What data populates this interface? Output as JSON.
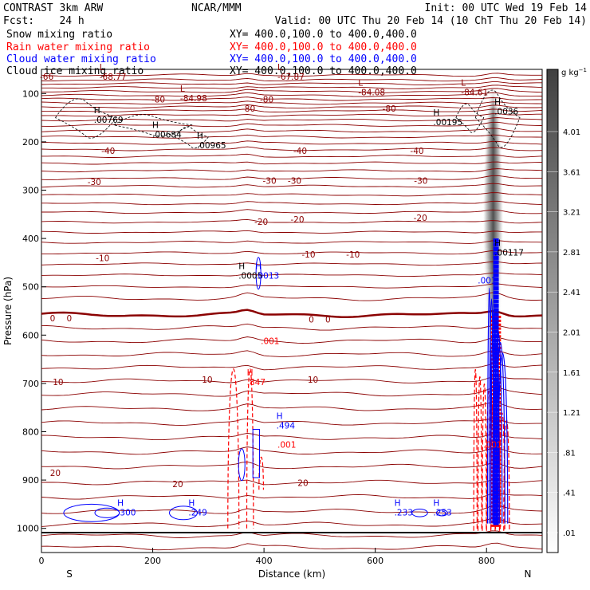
{
  "header": {
    "line1_left": "CONTRAST  3km ARW",
    "line1_mid": "NCAR/MMM",
    "line1_right": "Init: 00 UTC Wed 19 Feb 14",
    "line2_left": "Fcst:    24 h",
    "line2_right": "Valid: 00 UTC Thu 20 Feb 14 (10 ChT Thu 20 Feb 14)"
  },
  "legend": [
    {
      "label": "Snow mixing ratio",
      "xy": "",
      "color": "#000000"
    },
    {
      "label": "Rain water mixing ratio",
      "xy": "XY= 400.0,100.0 to 400.0,400.0",
      "color": "#ff0000"
    },
    {
      "label": "Cloud water mixing ratio",
      "xy": "XY= 400.0,100.0 to 400.0,400.0",
      "color": "#0000ff"
    },
    {
      "label": "Cloud ice mixing ratio",
      "xy": "XY= 400.0,100.0 to 400.0,400.0",
      "color": "#000000"
    }
  ],
  "snow_xy": "XY= 400.0,100.0 to 400.0,400.0",
  "colors": {
    "temperature": "#8b0000",
    "rain": "#ff0000",
    "cloud_water": "#0000ff",
    "cloud_ice": "#000000"
  },
  "chart_data": {
    "type": "cross-section",
    "x_label": "Distance (km)",
    "y_label": "Pressure (hPa)",
    "x_range": [
      0,
      900
    ],
    "y_range": [
      1050,
      50
    ],
    "x_ticks": [
      0,
      200,
      400,
      600,
      800
    ],
    "y_ticks": [
      100,
      200,
      300,
      400,
      500,
      600,
      700,
      800,
      900,
      1000
    ],
    "x_end_labels": {
      "left": "S",
      "right": "N"
    },
    "colorbar": {
      "unit": "g kg",
      "unit_sup": "−1",
      "labels": [
        "4.01",
        "3.61",
        "3.21",
        "2.81",
        "2.41",
        "2.01",
        "1.61",
        "1.21",
        ".81",
        ".41",
        ".01"
      ]
    },
    "temperature_contours": [
      {
        "value": -80,
        "label": "-80",
        "p": 118,
        "labels_at_x": [
          190,
          380,
          680
        ]
      },
      {
        "value": -70,
        "label": "-70",
        "p": 140,
        "labels_at_x": []
      },
      {
        "value": -60,
        "label": "-60",
        "p": 165,
        "labels_at_x": []
      },
      {
        "value": -50,
        "label": "-50",
        "p": 190,
        "labels_at_x": []
      },
      {
        "value": -40,
        "label": "-40",
        "p": 228,
        "labels_at_x": [
          110,
          450,
          680
        ]
      },
      {
        "value": -30,
        "label": "-30",
        "p": 292,
        "labels_at_x": [
          80,
          400,
          440,
          680
        ]
      },
      {
        "value": -20,
        "label": "-20",
        "p": 369,
        "labels_at_x": [
          380,
          440,
          680
        ]
      },
      {
        "value": -10,
        "label": "-10",
        "p": 446,
        "labels_at_x": [
          100,
          470,
          550
        ]
      },
      {
        "value": 0,
        "label": "0",
        "p": 558,
        "labels_at_x": [
          25,
          480,
          505
        ]
      },
      {
        "value": 10,
        "label": "10",
        "p": 692,
        "labels_at_x": [
          30,
          285,
          470
        ]
      },
      {
        "value": 20,
        "label": "20",
        "p": 905,
        "labels_at_x": [
          20,
          235,
          455
        ]
      }
    ],
    "temperature_labels": [
      {
        "text": "-80",
        "x": 210,
        "p": 112
      },
      {
        "text": "-80",
        "x": 405,
        "p": 112
      },
      {
        "text": "-80",
        "x": 625,
        "p": 131
      },
      {
        "text": "-80",
        "x": 372,
        "p": 131
      },
      {
        "text": "-40",
        "x": 120,
        "p": 218
      },
      {
        "text": "-40",
        "x": 465,
        "p": 218
      },
      {
        "text": "-40",
        "x": 675,
        "p": 218
      },
      {
        "text": "-30",
        "x": 95,
        "p": 283
      },
      {
        "text": "-30",
        "x": 410,
        "p": 280
      },
      {
        "text": "-30",
        "x": 455,
        "p": 280
      },
      {
        "text": "-30",
        "x": 682,
        "p": 280
      },
      {
        "text": "-20",
        "x": 395,
        "p": 365
      },
      {
        "text": "-20",
        "x": 460,
        "p": 360
      },
      {
        "text": "-20",
        "x": 681,
        "p": 357
      },
      {
        "text": "-10",
        "x": 110,
        "p": 440
      },
      {
        "text": "-10",
        "x": 480,
        "p": 433
      },
      {
        "text": "-10",
        "x": 560,
        "p": 433
      },
      {
        "text": "0",
        "x": 20,
        "p": 565
      },
      {
        "text": "0",
        "x": 50,
        "p": 565
      },
      {
        "text": "0",
        "x": 485,
        "p": 567
      },
      {
        "text": "0",
        "x": 515,
        "p": 567
      },
      {
        "text": "10",
        "x": 30,
        "p": 697
      },
      {
        "text": "10",
        "x": 298,
        "p": 692
      },
      {
        "text": "10",
        "x": 488,
        "p": 692
      },
      {
        "text": "20",
        "x": 25,
        "p": 885
      },
      {
        "text": "20",
        "x": 245,
        "p": 908
      },
      {
        "text": "20",
        "x": 470,
        "p": 906
      }
    ],
    "extrema": [
      {
        "kind": "L",
        "value": "-68.77",
        "x": 110,
        "p": 68,
        "color": "#8b0000"
      },
      {
        "kind": "L",
        "value": "-84.98",
        "x": 255,
        "p": 113,
        "color": "#8b0000"
      },
      {
        "kind": "L",
        "value": "-67.87",
        "x": 430,
        "p": 68,
        "color": "#8b0000"
      },
      {
        "kind": "L",
        "value": "-84.08",
        "x": 575,
        "p": 100,
        "color": "#8b0000"
      },
      {
        "kind": "L",
        "value": "-84.61",
        "x": 760,
        "p": 100,
        "color": "#8b0000"
      },
      {
        "kind": "",
        "value": "-66",
        "x": -10,
        "p": 68,
        "color": "#8b0000"
      },
      {
        "kind": "H",
        "value": ".00769",
        "x": 100,
        "p": 157,
        "color": "#000000"
      },
      {
        "kind": "H",
        "value": ".00684",
        "x": 205,
        "p": 188,
        "color": "#000000"
      },
      {
        "kind": "H",
        "value": ".00965",
        "x": 285,
        "p": 210,
        "color": "#000000"
      },
      {
        "kind": "H",
        "value": ".00195",
        "x": 710,
        "p": 162,
        "color": "#000000"
      },
      {
        "kind": "H",
        "value": ".0036",
        "x": 820,
        "p": 140,
        "color": "#000000"
      },
      {
        "kind": "H",
        "value": ".0005",
        "x": 360,
        "p": 480,
        "color": "#000000"
      },
      {
        "kind": "H",
        "value": ".0013",
        "x": 390,
        "p": 480,
        "color": "#0000ff"
      },
      {
        "kind": "H",
        "value": ".00117",
        "x": 820,
        "p": 432,
        "color": "#000000"
      },
      {
        "kind": "",
        "value": ".001",
        "x": 400,
        "p": 615,
        "color": "#ff0000"
      },
      {
        "kind": "H",
        "value": ".847",
        "x": 375,
        "p": 700,
        "color": "#ff0000"
      },
      {
        "kind": "H",
        "value": ".494",
        "x": 428,
        "p": 790,
        "color": "#0000ff"
      },
      {
        "kind": "",
        "value": ".001",
        "x": 430,
        "p": 830,
        "color": "#ff0000"
      },
      {
        "kind": "H",
        "value": ".300",
        "x": 142,
        "p": 970,
        "color": "#0000ff"
      },
      {
        "kind": "H",
        "value": ".249",
        "x": 270,
        "p": 970,
        "color": "#0000ff"
      },
      {
        "kind": "H",
        "value": ".233",
        "x": 640,
        "p": 970,
        "color": "#0000ff"
      },
      {
        "kind": "H",
        "value": ".253",
        "x": 710,
        "p": 970,
        "color": "#0000ff"
      },
      {
        "kind": "",
        "value": ".001",
        "x": 790,
        "p": 490,
        "color": "#0000ff"
      },
      {
        "kind": "",
        "value": ".001",
        "x": 800,
        "p": 830,
        "color": "#ff0000"
      }
    ],
    "snow_column": {
      "x": 812,
      "p_top": 95,
      "p_bottom": 540,
      "max_g_kg": 2.2
    }
  }
}
